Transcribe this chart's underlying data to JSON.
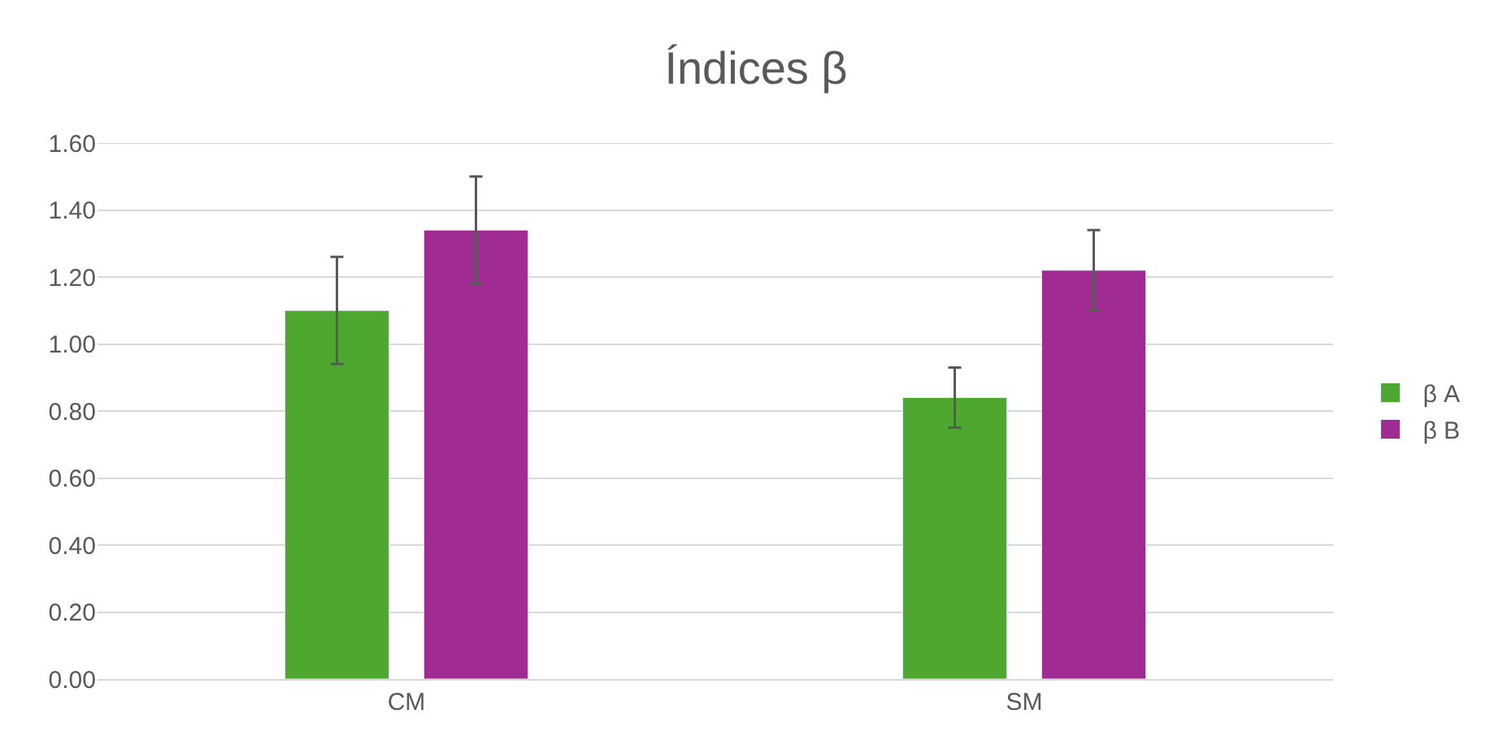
{
  "chart_data": {
    "type": "bar",
    "title": "Índices β",
    "categories": [
      "CM",
      "SM"
    ],
    "series": [
      {
        "name": "β A",
        "color": "#4ea72e",
        "values": [
          1.1,
          0.84
        ],
        "errors": [
          0.16,
          0.09
        ]
      },
      {
        "name": "β B",
        "color": "#a02b93",
        "values": [
          1.34,
          1.22
        ],
        "errors": [
          0.16,
          0.12
        ]
      }
    ],
    "ylim": [
      0,
      1.6
    ],
    "yticks": [
      {
        "value": 0,
        "label": "0.00"
      },
      {
        "value": 0.2,
        "label": "0.20"
      },
      {
        "value": 0.4,
        "label": "0.40"
      },
      {
        "value": 0.6,
        "label": "0.60"
      },
      {
        "value": 0.8,
        "label": "0.80"
      },
      {
        "value": 1,
        "label": "1.00"
      },
      {
        "value": 1.2,
        "label": "1.20"
      },
      {
        "value": 1.4,
        "label": "1.40"
      },
      {
        "value": 1.6,
        "label": "1.60"
      }
    ],
    "grid": "y",
    "legend": "right"
  }
}
